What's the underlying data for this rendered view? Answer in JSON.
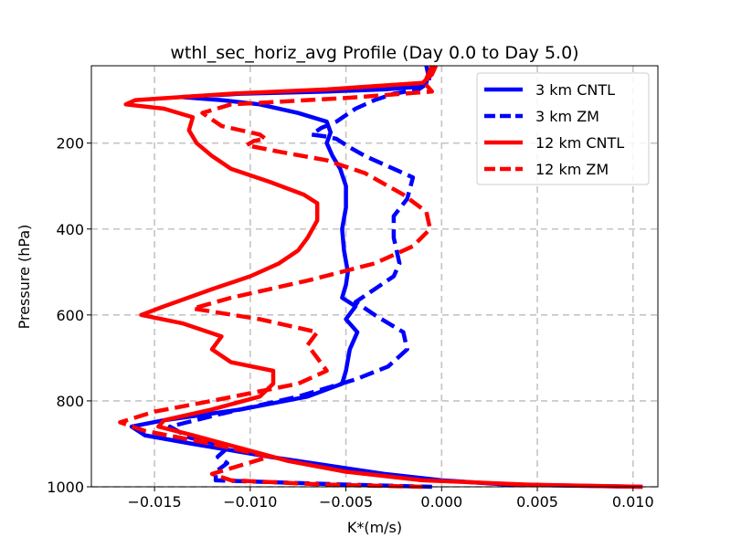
{
  "chart_data": {
    "type": "line",
    "title": "wthl_sec_horiz_avg Profile (Day 0.0 to Day 5.0)",
    "xlabel": "K*(m/s)",
    "ylabel": "Pressure (hPa)",
    "xlim": [
      -0.0183,
      0.0113
    ],
    "ylim": [
      1000,
      20
    ],
    "y_inverted": true,
    "grid": true,
    "legend_position": "top-right",
    "x_ticks": [
      {
        "value": -0.015,
        "label": "−0.015"
      },
      {
        "value": -0.01,
        "label": "−0.010"
      },
      {
        "value": -0.005,
        "label": "−0.005"
      },
      {
        "value": 0.0,
        "label": "0.000"
      },
      {
        "value": 0.005,
        "label": "0.005"
      },
      {
        "value": 0.01,
        "label": "0.010"
      }
    ],
    "y_ticks": [
      {
        "value": 200,
        "label": "200"
      },
      {
        "value": 400,
        "label": "400"
      },
      {
        "value": 600,
        "label": "600"
      },
      {
        "value": 800,
        "label": "800"
      },
      {
        "value": 1000,
        "label": "1000"
      }
    ],
    "series": [
      {
        "name": "3 km CNTL",
        "color": "#0000ff",
        "dash": "solid",
        "points": [
          [
            -0.0008,
            20
          ],
          [
            -0.0007,
            40
          ],
          [
            -0.0008,
            60
          ],
          [
            -0.0015,
            70
          ],
          [
            -0.003,
            75
          ],
          [
            -0.006,
            80
          ],
          [
            -0.0105,
            85
          ],
          [
            -0.0136,
            93
          ],
          [
            -0.0115,
            100
          ],
          [
            -0.0095,
            110
          ],
          [
            -0.0075,
            130
          ],
          [
            -0.006,
            150
          ],
          [
            -0.0058,
            175
          ],
          [
            -0.006,
            200
          ],
          [
            -0.0057,
            230
          ],
          [
            -0.0053,
            260
          ],
          [
            -0.005,
            300
          ],
          [
            -0.005,
            350
          ],
          [
            -0.0052,
            400
          ],
          [
            -0.0051,
            450
          ],
          [
            -0.0049,
            500
          ],
          [
            -0.005,
            530
          ],
          [
            -0.0052,
            560
          ],
          [
            -0.0045,
            580
          ],
          [
            -0.005,
            610
          ],
          [
            -0.0044,
            640
          ],
          [
            -0.0048,
            680
          ],
          [
            -0.005,
            730
          ],
          [
            -0.0052,
            760
          ],
          [
            -0.007,
            790
          ],
          [
            -0.0105,
            820
          ],
          [
            -0.0145,
            845
          ],
          [
            -0.0162,
            860
          ],
          [
            -0.0155,
            880
          ],
          [
            -0.013,
            900
          ],
          [
            -0.009,
            930
          ],
          [
            -0.006,
            950
          ],
          [
            -0.003,
            970
          ],
          [
            0.0,
            985
          ],
          [
            0.0035,
            995
          ],
          [
            0.0105,
            1000
          ]
        ]
      },
      {
        "name": "3 km ZM",
        "color": "#0000ff",
        "dash": "dashed",
        "points": [
          [
            -0.0005,
            20
          ],
          [
            -0.0006,
            40
          ],
          [
            -0.0007,
            60
          ],
          [
            -0.0012,
            75
          ],
          [
            -0.0025,
            85
          ],
          [
            -0.0035,
            100
          ],
          [
            -0.0045,
            120
          ],
          [
            -0.0055,
            150
          ],
          [
            -0.0063,
            165
          ],
          [
            -0.0068,
            180
          ],
          [
            -0.006,
            185
          ],
          [
            -0.0055,
            190
          ],
          [
            -0.0048,
            210
          ],
          [
            -0.004,
            230
          ],
          [
            -0.003,
            250
          ],
          [
            -0.0015,
            280
          ],
          [
            -0.0018,
            330
          ],
          [
            -0.0025,
            370
          ],
          [
            -0.0025,
            420
          ],
          [
            -0.0022,
            480
          ],
          [
            -0.0025,
            510
          ],
          [
            -0.0035,
            540
          ],
          [
            -0.0045,
            570
          ],
          [
            -0.0035,
            600
          ],
          [
            -0.002,
            640
          ],
          [
            -0.0018,
            680
          ],
          [
            -0.0028,
            720
          ],
          [
            -0.0045,
            750
          ],
          [
            -0.0075,
            790
          ],
          [
            -0.0115,
            830
          ],
          [
            -0.0142,
            860
          ],
          [
            -0.0132,
            885
          ],
          [
            -0.0118,
            900
          ],
          [
            -0.0112,
            910
          ],
          [
            -0.0117,
            930
          ],
          [
            -0.0112,
            945
          ],
          [
            -0.0118,
            965
          ],
          [
            -0.0118,
            985
          ],
          [
            -0.005,
            995
          ],
          [
            -0.0005,
            1000
          ]
        ]
      },
      {
        "name": "12 km CNTL",
        "color": "#ff0000",
        "dash": "solid",
        "points": [
          [
            -0.0003,
            20
          ],
          [
            -0.0005,
            40
          ],
          [
            -0.001,
            60
          ],
          [
            -0.006,
            75
          ],
          [
            -0.011,
            85
          ],
          [
            -0.016,
            100
          ],
          [
            -0.0165,
            110
          ],
          [
            -0.0145,
            120
          ],
          [
            -0.013,
            140
          ],
          [
            -0.0132,
            170
          ],
          [
            -0.0128,
            200
          ],
          [
            -0.012,
            230
          ],
          [
            -0.011,
            260
          ],
          [
            -0.009,
            290
          ],
          [
            -0.0072,
            320
          ],
          [
            -0.0065,
            340
          ],
          [
            -0.0065,
            380
          ],
          [
            -0.007,
            420
          ],
          [
            -0.0075,
            450
          ],
          [
            -0.0085,
            480
          ],
          [
            -0.01,
            510
          ],
          [
            -0.012,
            540
          ],
          [
            -0.0145,
            580
          ],
          [
            -0.0157,
            600
          ],
          [
            -0.0135,
            620
          ],
          [
            -0.0115,
            650
          ],
          [
            -0.012,
            680
          ],
          [
            -0.011,
            710
          ],
          [
            -0.0088,
            730
          ],
          [
            -0.0088,
            760
          ],
          [
            -0.0095,
            790
          ],
          [
            -0.012,
            820
          ],
          [
            -0.0145,
            845
          ],
          [
            -0.0148,
            860
          ],
          [
            -0.013,
            880
          ],
          [
            -0.0105,
            910
          ],
          [
            -0.008,
            940
          ],
          [
            -0.005,
            965
          ],
          [
            -0.001,
            985
          ],
          [
            0.0045,
            995
          ],
          [
            0.0105,
            1000
          ]
        ]
      },
      {
        "name": "12 km ZM",
        "color": "#ff0000",
        "dash": "dashed",
        "points": [
          [
            -0.0005,
            20
          ],
          [
            -0.0007,
            40
          ],
          [
            -0.0009,
            60
          ],
          [
            -0.0005,
            80
          ],
          [
            -0.005,
            95
          ],
          [
            -0.011,
            110
          ],
          [
            -0.0125,
            130
          ],
          [
            -0.0115,
            160
          ],
          [
            -0.0095,
            180
          ],
          [
            -0.0092,
            190
          ],
          [
            -0.0098,
            195
          ],
          [
            -0.0102,
            205
          ],
          [
            -0.0085,
            220
          ],
          [
            -0.006,
            240
          ],
          [
            -0.004,
            270
          ],
          [
            -0.002,
            320
          ],
          [
            -0.0008,
            360
          ],
          [
            -0.0006,
            400
          ],
          [
            -0.0015,
            440
          ],
          [
            -0.0035,
            480
          ],
          [
            -0.007,
            520
          ],
          [
            -0.011,
            560
          ],
          [
            -0.013,
            585
          ],
          [
            -0.0095,
            610
          ],
          [
            -0.0065,
            640
          ],
          [
            -0.007,
            670
          ],
          [
            -0.0065,
            700
          ],
          [
            -0.006,
            730
          ],
          [
            -0.0075,
            760
          ],
          [
            -0.012,
            800
          ],
          [
            -0.015,
            825
          ],
          [
            -0.0168,
            850
          ],
          [
            -0.0155,
            870
          ],
          [
            -0.012,
            900
          ],
          [
            -0.009,
            930
          ],
          [
            -0.0105,
            950
          ],
          [
            -0.012,
            970
          ],
          [
            -0.011,
            985
          ],
          [
            -0.006,
            995
          ],
          [
            -0.001,
            1000
          ]
        ]
      }
    ]
  }
}
